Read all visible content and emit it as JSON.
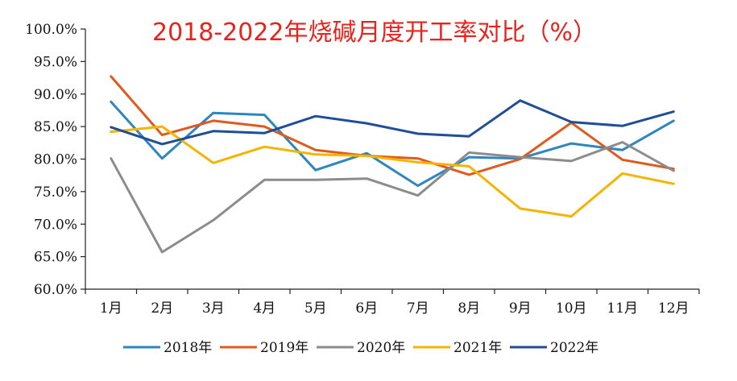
{
  "chart_data": {
    "type": "line",
    "title": "2018-2022年烧碱月度开工率对比（%）",
    "xlabel": "",
    "ylabel": "",
    "categories": [
      "1月",
      "2月",
      "3月",
      "4月",
      "5月",
      "6月",
      "7月",
      "8月",
      "9月",
      "10月",
      "11月",
      "12月"
    ],
    "y_ticks": [
      "60.0%",
      "65.0%",
      "70.0%",
      "75.0%",
      "80.0%",
      "85.0%",
      "90.0%",
      "95.0%",
      "100.0%"
    ],
    "ylim": [
      60,
      100
    ],
    "grid": false,
    "legend_position": "bottom",
    "series": [
      {
        "name": "2018年",
        "color": "#2e86c1",
        "values": [
          88.8,
          80.1,
          87.1,
          86.8,
          78.3,
          80.9,
          75.9,
          80.3,
          80.1,
          82.4,
          81.4,
          85.9
        ]
      },
      {
        "name": "2019年",
        "color": "#e05a1e",
        "values": [
          92.7,
          83.7,
          85.9,
          85.0,
          81.4,
          80.5,
          80.1,
          77.6,
          80.0,
          85.6,
          79.9,
          78.5
        ]
      },
      {
        "name": "2020年",
        "color": "#8c8c8c",
        "values": [
          80.1,
          65.7,
          70.6,
          76.8,
          76.8,
          77.0,
          74.4,
          81.0,
          80.3,
          79.7,
          82.6,
          78.2
        ]
      },
      {
        "name": "2021年",
        "color": "#f4b400",
        "values": [
          84.2,
          85.0,
          79.4,
          81.9,
          80.7,
          80.5,
          79.5,
          78.9,
          72.4,
          71.2,
          77.8,
          76.2
        ]
      },
      {
        "name": "2022年",
        "color": "#1f4e96",
        "values": [
          84.9,
          82.3,
          84.3,
          84.0,
          86.6,
          85.5,
          83.9,
          83.5,
          89.0,
          85.7,
          85.1,
          87.3
        ]
      }
    ]
  }
}
